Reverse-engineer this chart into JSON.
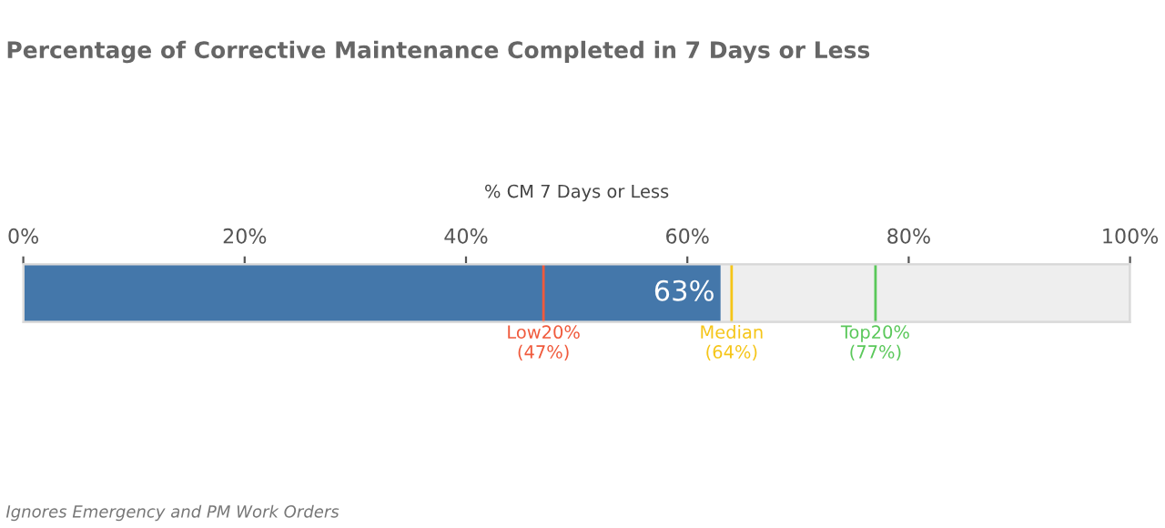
{
  "chart_data": {
    "type": "bar",
    "orientation": "horizontal",
    "title": "Percentage of Corrective Maintenance Completed in 7 Days or Less",
    "xlabel": "% CM 7 Days or Less",
    "categories": [
      null
    ],
    "values": [
      63
    ],
    "color": "#4477aa",
    "value_labels": [
      "63%"
    ],
    "xlim": [
      0,
      100
    ],
    "xticks": [
      {
        "value": 0,
        "label": "0%"
      },
      {
        "value": 20,
        "label": "20%"
      },
      {
        "value": 40,
        "label": "40%"
      },
      {
        "value": 60,
        "label": "60%"
      },
      {
        "value": 80,
        "label": "80%"
      },
      {
        "value": 100,
        "label": "100%"
      }
    ],
    "bands": [
      {
        "axis": "x",
        "from": 0,
        "to": 100,
        "color": "#eeeeee"
      }
    ],
    "ref_lines": [
      {
        "axis": "x",
        "value": 47,
        "label": "Low20%\n(47%)",
        "color": "#f05a3c"
      },
      {
        "axis": "x",
        "value": 64,
        "label": "Median\n(64%)",
        "color": "#f5c518"
      },
      {
        "axis": "x",
        "value": 77,
        "label": "Top20%\n(77%)",
        "color": "#5ac85a"
      }
    ],
    "annotations": [
      "Ignores Emergency and PM Work Orders"
    ],
    "tick_labels": "x",
    "grid": false,
    "legend": false
  }
}
